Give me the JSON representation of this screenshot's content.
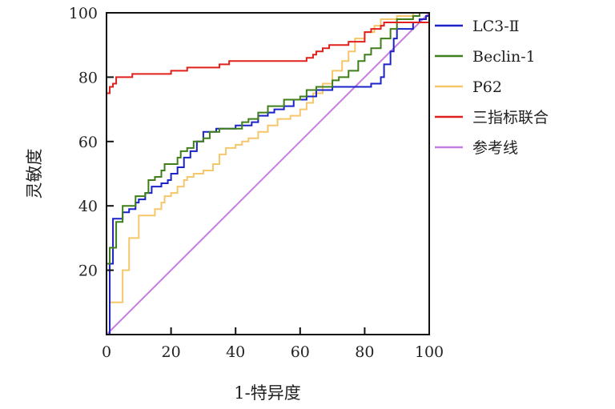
{
  "chart_data": {
    "type": "line",
    "title": "",
    "xlabel": "1-特异度",
    "ylabel": "灵敏度",
    "xlim": [
      0,
      100
    ],
    "ylim": [
      0,
      100
    ],
    "xticks": [
      "0",
      "20",
      "40",
      "60",
      "80",
      "100"
    ],
    "yticks": [
      "20",
      "40",
      "60",
      "80",
      "100"
    ],
    "grid": false,
    "legend_position": "right",
    "series": [
      {
        "name": "LC3-Ⅱ",
        "color": "#1a22c8",
        "step": true,
        "points": [
          [
            0,
            0
          ],
          [
            1,
            0
          ],
          [
            1,
            11
          ],
          [
            1,
            22
          ],
          [
            2,
            22
          ],
          [
            2,
            36
          ],
          [
            5,
            37
          ],
          [
            5,
            38
          ],
          [
            7,
            39
          ],
          [
            9,
            41
          ],
          [
            10,
            42
          ],
          [
            12,
            44
          ],
          [
            14,
            46
          ],
          [
            17,
            47
          ],
          [
            19,
            48
          ],
          [
            20,
            50
          ],
          [
            22,
            52
          ],
          [
            24,
            55
          ],
          [
            26,
            57
          ],
          [
            28,
            60
          ],
          [
            30,
            63
          ],
          [
            34,
            64
          ],
          [
            40,
            65
          ],
          [
            45,
            66
          ],
          [
            47,
            68
          ],
          [
            50,
            69
          ],
          [
            52,
            70
          ],
          [
            55,
            71
          ],
          [
            58,
            73
          ],
          [
            62,
            74
          ],
          [
            65,
            76
          ],
          [
            70,
            77
          ],
          [
            80,
            77
          ],
          [
            82,
            78
          ],
          [
            85,
            80
          ],
          [
            86,
            84
          ],
          [
            88,
            88
          ],
          [
            89,
            92
          ],
          [
            90,
            95
          ],
          [
            95,
            97
          ],
          [
            97,
            98
          ],
          [
            99,
            99
          ],
          [
            100,
            100
          ]
        ]
      },
      {
        "name": "Beclin-1",
        "color": "#3f7f1a",
        "step": true,
        "points": [
          [
            0,
            0
          ],
          [
            0,
            22
          ],
          [
            1,
            22
          ],
          [
            1,
            27
          ],
          [
            3,
            27
          ],
          [
            3,
            35
          ],
          [
            5,
            35
          ],
          [
            5,
            40
          ],
          [
            7,
            40
          ],
          [
            9,
            43
          ],
          [
            12,
            44
          ],
          [
            13,
            48
          ],
          [
            15,
            49
          ],
          [
            17,
            51
          ],
          [
            18,
            53
          ],
          [
            20,
            53
          ],
          [
            22,
            55
          ],
          [
            23,
            57
          ],
          [
            25,
            58
          ],
          [
            27,
            60
          ],
          [
            30,
            61
          ],
          [
            32,
            63
          ],
          [
            35,
            64
          ],
          [
            40,
            64
          ],
          [
            42,
            66
          ],
          [
            44,
            67
          ],
          [
            47,
            69
          ],
          [
            50,
            71
          ],
          [
            55,
            73
          ],
          [
            60,
            74
          ],
          [
            62,
            76
          ],
          [
            65,
            77
          ],
          [
            70,
            79
          ],
          [
            72,
            80
          ],
          [
            75,
            82
          ],
          [
            78,
            85
          ],
          [
            80,
            87
          ],
          [
            82,
            89
          ],
          [
            85,
            92
          ],
          [
            88,
            95
          ],
          [
            90,
            98
          ],
          [
            95,
            99
          ],
          [
            97,
            100
          ],
          [
            100,
            100
          ]
        ]
      },
      {
        "name": "P62",
        "color": "#f5c66a",
        "step": true,
        "points": [
          [
            0,
            0
          ],
          [
            1,
            0
          ],
          [
            1,
            10
          ],
          [
            5,
            10
          ],
          [
            5,
            20
          ],
          [
            7,
            20
          ],
          [
            7,
            30
          ],
          [
            10,
            30
          ],
          [
            10,
            37
          ],
          [
            13,
            37
          ],
          [
            15,
            39
          ],
          [
            17,
            41
          ],
          [
            18,
            43
          ],
          [
            20,
            44
          ],
          [
            22,
            46
          ],
          [
            24,
            48
          ],
          [
            25,
            49
          ],
          [
            27,
            50
          ],
          [
            30,
            51
          ],
          [
            33,
            53
          ],
          [
            35,
            56
          ],
          [
            37,
            58
          ],
          [
            40,
            59
          ],
          [
            42,
            60
          ],
          [
            44,
            61
          ],
          [
            47,
            63
          ],
          [
            50,
            65
          ],
          [
            53,
            67
          ],
          [
            57,
            68
          ],
          [
            60,
            70
          ],
          [
            62,
            72
          ],
          [
            64,
            75
          ],
          [
            67,
            78
          ],
          [
            70,
            82
          ],
          [
            73,
            85
          ],
          [
            75,
            88
          ],
          [
            77,
            92
          ],
          [
            80,
            94
          ],
          [
            83,
            96
          ],
          [
            85,
            98
          ],
          [
            90,
            99
          ],
          [
            95,
            100
          ],
          [
            100,
            100
          ]
        ]
      },
      {
        "name": "三指标联合",
        "color": "#e0201c",
        "step": true,
        "points": [
          [
            0,
            0
          ],
          [
            0,
            75
          ],
          [
            1,
            75
          ],
          [
            1,
            77
          ],
          [
            2,
            77
          ],
          [
            2,
            78
          ],
          [
            3,
            78
          ],
          [
            3,
            80
          ],
          [
            8,
            80
          ],
          [
            8,
            81
          ],
          [
            12,
            81
          ],
          [
            20,
            82
          ],
          [
            25,
            83
          ],
          [
            30,
            83
          ],
          [
            35,
            84
          ],
          [
            38,
            85
          ],
          [
            60,
            85
          ],
          [
            62,
            86
          ],
          [
            64,
            87
          ],
          [
            65,
            88
          ],
          [
            67,
            89
          ],
          [
            69,
            90
          ],
          [
            75,
            91
          ],
          [
            80,
            91
          ],
          [
            80,
            94
          ],
          [
            82,
            95
          ],
          [
            85,
            96
          ],
          [
            86,
            97
          ],
          [
            100,
            97
          ],
          [
            100,
            100
          ]
        ]
      },
      {
        "name": "参考线",
        "color": "#c77ee0",
        "step": false,
        "points": [
          [
            0,
            0
          ],
          [
            100,
            100
          ]
        ]
      }
    ]
  }
}
